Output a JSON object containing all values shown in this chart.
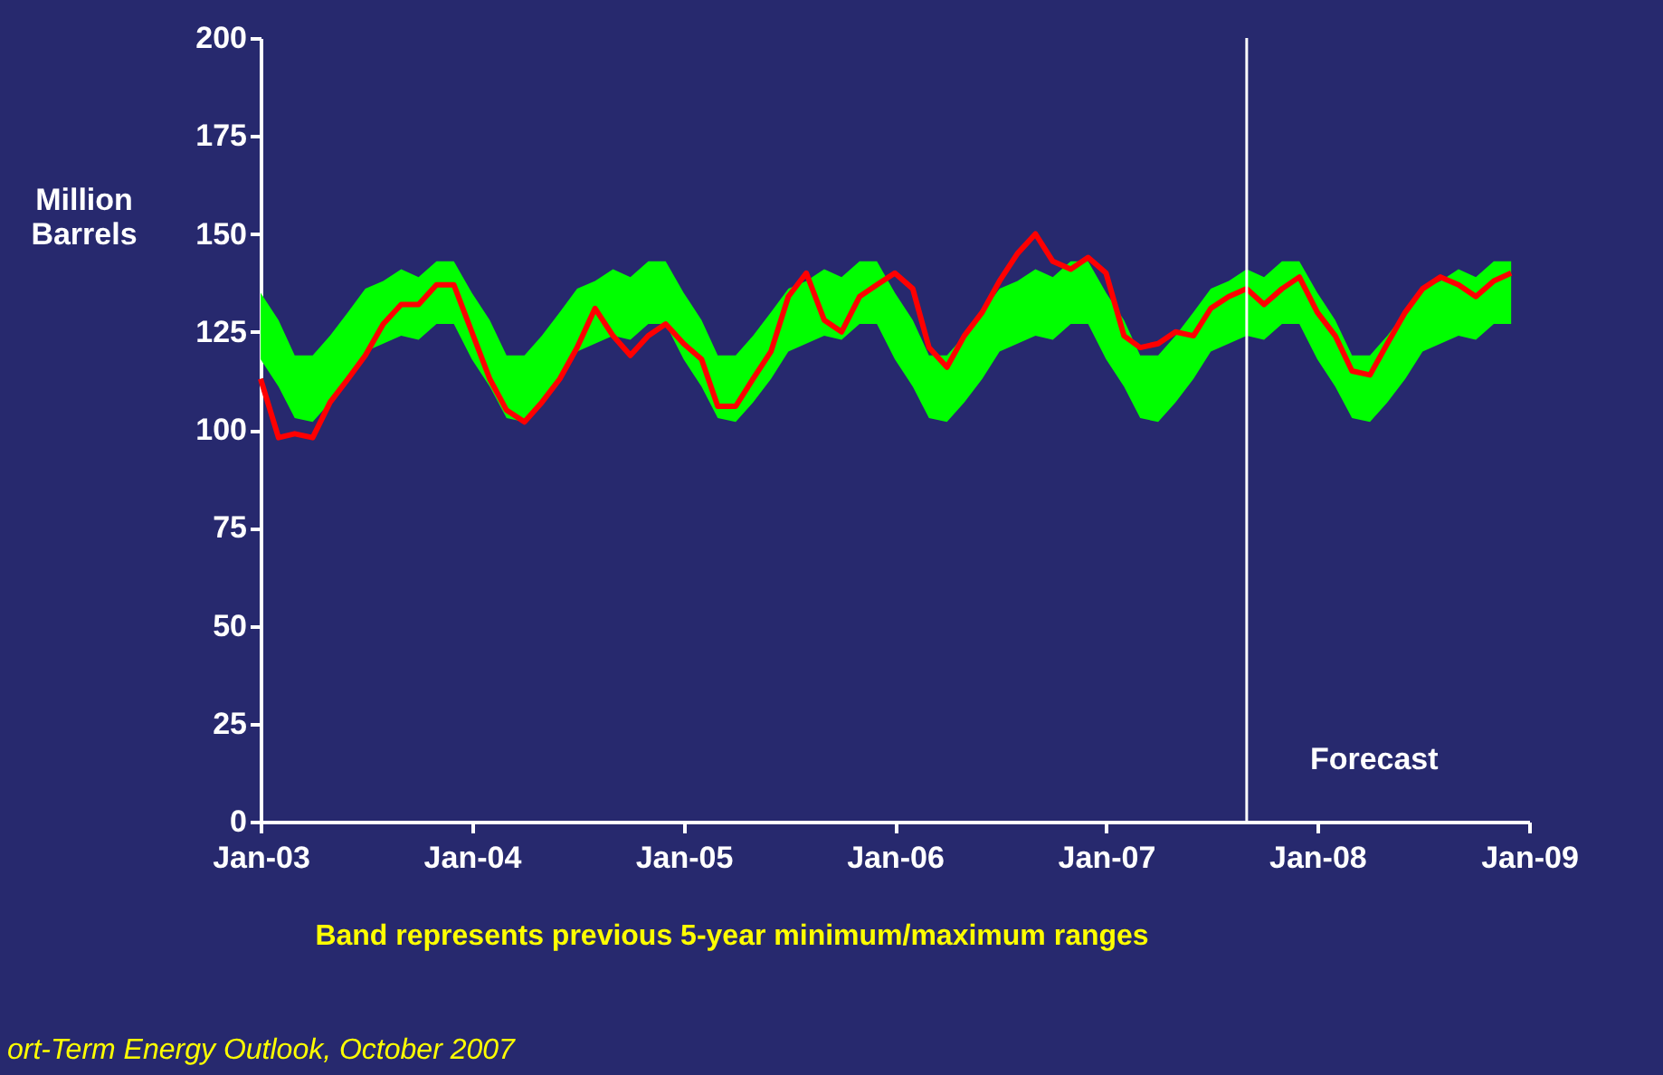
{
  "chart_data": {
    "type": "line",
    "ylabel": "Million Barrels",
    "x": [
      "2003-01",
      "2003-02",
      "2003-03",
      "2003-04",
      "2003-05",
      "2003-06",
      "2003-07",
      "2003-08",
      "2003-09",
      "2003-10",
      "2003-11",
      "2003-12",
      "2004-01",
      "2004-02",
      "2004-03",
      "2004-04",
      "2004-05",
      "2004-06",
      "2004-07",
      "2004-08",
      "2004-09",
      "2004-10",
      "2004-11",
      "2004-12",
      "2005-01",
      "2005-02",
      "2005-03",
      "2005-04",
      "2005-05",
      "2005-06",
      "2005-07",
      "2005-08",
      "2005-09",
      "2005-10",
      "2005-11",
      "2005-12",
      "2006-01",
      "2006-02",
      "2006-03",
      "2006-04",
      "2006-05",
      "2006-06",
      "2006-07",
      "2006-08",
      "2006-09",
      "2006-10",
      "2006-11",
      "2006-12",
      "2007-01",
      "2007-02",
      "2007-03",
      "2007-04",
      "2007-05",
      "2007-06",
      "2007-07",
      "2007-08",
      "2007-09",
      "2007-10",
      "2007-11",
      "2007-12",
      "2008-01",
      "2008-02",
      "2008-03",
      "2008-04",
      "2008-05",
      "2008-06",
      "2008-07",
      "2008-08",
      "2008-09",
      "2008-10",
      "2008-11",
      "2008-12"
    ],
    "series": [
      {
        "color": "#ff0000",
        "lower": [
          118,
          111,
          103,
          102,
          107,
          113,
          120,
          122,
          124,
          123,
          127,
          127,
          118,
          111,
          103,
          102,
          107,
          113,
          120,
          122,
          124,
          123,
          127,
          127,
          118,
          111,
          103,
          102,
          107,
          113,
          120,
          122,
          124,
          123,
          127,
          127,
          118,
          111,
          103,
          102,
          107,
          113,
          120,
          122,
          124,
          123,
          127,
          127,
          118,
          111,
          103,
          102,
          107,
          113,
          120,
          122,
          124,
          123,
          127,
          127,
          118,
          111,
          103,
          102,
          107,
          113,
          120,
          122,
          124,
          123,
          127,
          127
        ],
        "values": [
          113,
          98,
          99,
          98,
          107,
          113,
          119,
          127,
          132,
          132,
          137,
          137,
          125,
          113,
          105,
          102,
          107,
          113,
          121,
          131,
          124,
          119,
          124,
          127,
          122,
          118,
          106,
          106,
          113,
          120,
          134,
          140,
          128,
          125,
          134,
          137,
          140,
          136,
          121,
          116,
          124,
          130,
          138,
          145,
          150,
          143,
          141,
          144,
          140,
          124,
          121,
          122,
          125,
          124,
          131,
          134,
          136,
          132,
          136,
          139,
          130,
          124,
          115,
          114,
          122,
          130,
          136,
          139,
          137,
          134,
          138,
          140
        ],
        "upper": [
          135,
          128,
          119,
          119,
          124,
          130,
          136,
          138,
          141,
          139,
          143,
          143,
          135,
          128,
          119,
          119,
          124,
          130,
          136,
          138,
          141,
          139,
          143,
          143,
          135,
          128,
          119,
          119,
          124,
          130,
          136,
          138,
          141,
          139,
          143,
          143,
          135,
          128,
          119,
          119,
          124,
          130,
          136,
          138,
          141,
          139,
          143,
          143,
          135,
          128,
          119,
          119,
          124,
          130,
          136,
          138,
          141,
          139,
          143,
          143,
          135,
          128,
          119,
          119,
          124,
          130,
          136,
          138,
          141,
          139,
          143,
          143
        ]
      }
    ],
    "xlim": [
      "2003-01",
      "2009-01"
    ],
    "xticks": [
      {
        "value": "2003-01",
        "label": "Jan-03"
      },
      {
        "value": "2004-01",
        "label": "Jan-04"
      },
      {
        "value": "2005-01",
        "label": "Jan-05"
      },
      {
        "value": "2006-01",
        "label": "Jan-06"
      },
      {
        "value": "2007-01",
        "label": "Jan-07"
      },
      {
        "value": "2008-01",
        "label": "Jan-08"
      },
      {
        "value": "2009-01",
        "label": "Jan-09"
      }
    ],
    "ylim": [
      0,
      200
    ],
    "yticks": [
      0,
      25,
      50,
      75,
      100,
      125,
      150,
      175,
      200
    ],
    "ref_lines": [
      {
        "axis": "x",
        "value": "2007-09",
        "label": "Forecast",
        "color": "#ffffff"
      }
    ],
    "annotations": [
      "Band represents previous 5-year minimum/maximum ranges",
      "ort-Term Energy Outlook, October 2007"
    ],
    "grid": false,
    "line_style": "solid",
    "marker": "none"
  }
}
